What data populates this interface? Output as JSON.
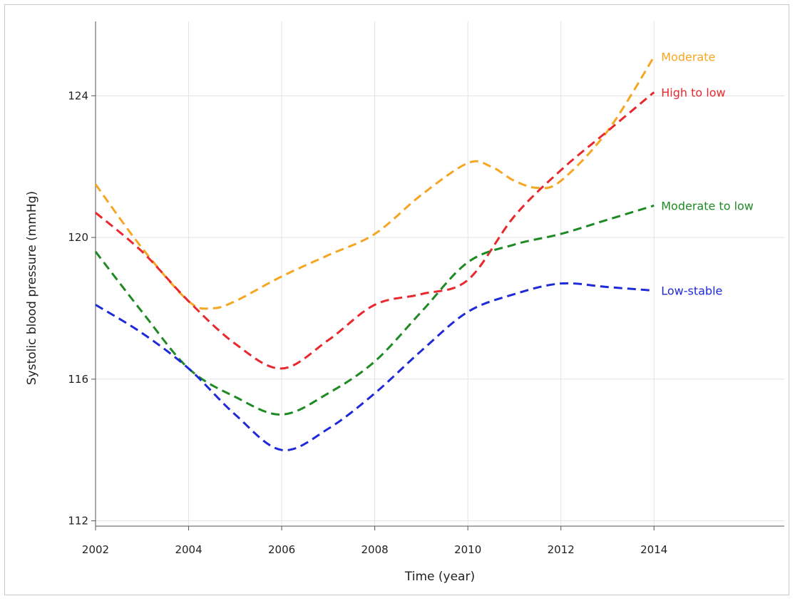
{
  "chart_data": {
    "type": "line",
    "title": "",
    "xlabel": "Time (year)",
    "ylabel": "Systolic blood pressure (mmHg)",
    "xlim": [
      2002,
      2016.8
    ],
    "ylim": [
      111.85,
      126.1
    ],
    "x_ticks": [
      2002,
      2004,
      2006,
      2008,
      2010,
      2012,
      2014
    ],
    "y_ticks": [
      112,
      116,
      120,
      124
    ],
    "grid": true,
    "legend": "inline labels at line ends",
    "line_style": "dashed",
    "series": [
      {
        "name": "Moderate",
        "color": "#f5a623",
        "x": [
          2002,
          2003,
          2004,
          2004.5,
          2005,
          2006,
          2007,
          2008,
          2009,
          2010,
          2010.5,
          2011,
          2011.5,
          2012,
          2013,
          2014
        ],
        "y": [
          121.5,
          119.7,
          118.2,
          118.0,
          118.2,
          118.9,
          119.5,
          120.1,
          121.2,
          122.1,
          122.0,
          121.6,
          121.4,
          121.6,
          123.0,
          125.1
        ]
      },
      {
        "name": "High to low",
        "color": "#e8282d",
        "x": [
          2002,
          2003,
          2004,
          2005,
          2006,
          2007,
          2008,
          2009,
          2010,
          2011,
          2012,
          2013,
          2014
        ],
        "y": [
          120.7,
          119.6,
          118.2,
          117.0,
          116.3,
          117.1,
          118.1,
          118.4,
          118.8,
          120.6,
          121.9,
          123.0,
          124.1
        ]
      },
      {
        "name": "Moderate to low",
        "color": "#1f8a24",
        "x": [
          2002,
          2003,
          2004,
          2005,
          2006,
          2007,
          2008,
          2009,
          2010,
          2011,
          2012,
          2013,
          2014
        ],
        "y": [
          119.6,
          117.9,
          116.3,
          115.5,
          115.0,
          115.6,
          116.5,
          117.9,
          119.3,
          119.8,
          120.1,
          120.5,
          120.9
        ]
      },
      {
        "name": "Low-stable",
        "color": "#1e2ad8",
        "x": [
          2002,
          2003,
          2004,
          2005,
          2006,
          2007,
          2008,
          2009,
          2010,
          2011,
          2012,
          2013,
          2014
        ],
        "y": [
          118.1,
          117.3,
          116.3,
          115.0,
          114.0,
          114.6,
          115.6,
          116.8,
          117.9,
          118.4,
          118.7,
          118.6,
          118.5
        ]
      }
    ]
  }
}
